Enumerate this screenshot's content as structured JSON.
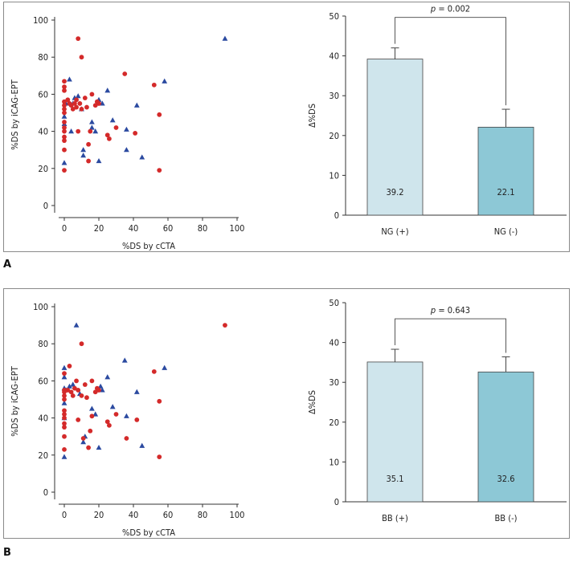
{
  "panels": [
    {
      "label": "A",
      "scatter": {
        "type": "scatter",
        "xlabel": "%DS by cCTA",
        "ylabel": "%DS by iCAG-EPT",
        "xlim": [
          0,
          100
        ],
        "ylim": [
          0,
          100
        ],
        "xticks": [
          0,
          20,
          40,
          60,
          80,
          100
        ],
        "yticks": [
          0,
          20,
          40,
          60,
          80,
          100
        ],
        "series": [
          {
            "name": "blue triangles",
            "color": "#2b4aa0",
            "marker": "triangle",
            "points": [
              [
                0,
                23
              ],
              [
                0,
                44
              ],
              [
                0,
                48
              ],
              [
                1,
                55
              ],
              [
                3,
                68
              ],
              [
                4,
                40
              ],
              [
                5,
                55
              ],
              [
                6,
                58
              ],
              [
                8,
                59
              ],
              [
                10,
                52
              ],
              [
                11,
                27
              ],
              [
                11,
                30
              ],
              [
                16,
                45
              ],
              [
                16,
                42
              ],
              [
                18,
                40
              ],
              [
                20,
                24
              ],
              [
                20,
                57
              ],
              [
                22,
                55
              ],
              [
                25,
                62
              ],
              [
                28,
                46
              ],
              [
                36,
                30
              ],
              [
                36,
                41
              ],
              [
                42,
                54
              ],
              [
                45,
                26
              ],
              [
                58,
                67
              ],
              [
                93,
                90
              ]
            ]
          },
          {
            "name": "red circles",
            "color": "#d42a2a",
            "marker": "circle",
            "points": [
              [
                0,
                19
              ],
              [
                0,
                30
              ],
              [
                0,
                35
              ],
              [
                0,
                37
              ],
              [
                0,
                40
              ],
              [
                0,
                42
              ],
              [
                0,
                45
              ],
              [
                0,
                50
              ],
              [
                0,
                52
              ],
              [
                0,
                54
              ],
              [
                0,
                56
              ],
              [
                0,
                62
              ],
              [
                0,
                64
              ],
              [
                0,
                67
              ],
              [
                2,
                57
              ],
              [
                3,
                55
              ],
              [
                4,
                54
              ],
              [
                5,
                52
              ],
              [
                6,
                55
              ],
              [
                7,
                57
              ],
              [
                7,
                53
              ],
              [
                8,
                90
              ],
              [
                8,
                40
              ],
              [
                9,
                55
              ],
              [
                10,
                80
              ],
              [
                10,
                52
              ],
              [
                12,
                58
              ],
              [
                13,
                53
              ],
              [
                14,
                24
              ],
              [
                14,
                33
              ],
              [
                15,
                40
              ],
              [
                16,
                60
              ],
              [
                18,
                54
              ],
              [
                19,
                56
              ],
              [
                20,
                55
              ],
              [
                25,
                38
              ],
              [
                26,
                36
              ],
              [
                30,
                42
              ],
              [
                35,
                71
              ],
              [
                41,
                39
              ],
              [
                52,
                65
              ],
              [
                55,
                19
              ],
              [
                55,
                49
              ]
            ]
          }
        ]
      },
      "bar": {
        "type": "bar",
        "ylabel": "Δ%DS",
        "ylim": [
          0,
          50
        ],
        "yticks": [
          0,
          10,
          20,
          30,
          40,
          50
        ],
        "categories": [
          "NG (+)",
          "NG (-)"
        ],
        "values": [
          39.2,
          22.1
        ],
        "value_labels": [
          "39.2",
          "22.1"
        ],
        "errors": [
          2.8,
          4.5
        ],
        "colors": [
          "#cfe5ec",
          "#8dc8d6"
        ],
        "annotation": "p = 0.002",
        "annotation_p": "p",
        "annotation_rest": " = 0.002"
      }
    },
    {
      "label": "B",
      "scatter": {
        "type": "scatter",
        "xlabel": "%DS by cCTA",
        "ylabel": "%DS by iCAG-EPT",
        "xlim": [
          0,
          100
        ],
        "ylim": [
          0,
          100
        ],
        "xticks": [
          0,
          20,
          40,
          60,
          80,
          100
        ],
        "yticks": [
          0,
          20,
          40,
          60,
          80,
          100
        ],
        "series": [
          {
            "name": "blue triangles",
            "color": "#2b4aa0",
            "marker": "triangle",
            "points": [
              [
                0,
                19
              ],
              [
                0,
                40
              ],
              [
                0,
                48
              ],
              [
                0,
                56
              ],
              [
                0,
                62
              ],
              [
                0,
                67
              ],
              [
                1,
                55
              ],
              [
                3,
                57
              ],
              [
                5,
                58
              ],
              [
                7,
                90
              ],
              [
                9,
                53
              ],
              [
                11,
                27
              ],
              [
                12,
                30
              ],
              [
                16,
                45
              ],
              [
                18,
                42
              ],
              [
                20,
                24
              ],
              [
                21,
                57
              ],
              [
                22,
                55
              ],
              [
                25,
                62
              ],
              [
                28,
                46
              ],
              [
                35,
                71
              ],
              [
                36,
                41
              ],
              [
                42,
                54
              ],
              [
                45,
                25
              ],
              [
                58,
                67
              ]
            ]
          },
          {
            "name": "red circles",
            "color": "#d42a2a",
            "marker": "circle",
            "points": [
              [
                0,
                23
              ],
              [
                0,
                30
              ],
              [
                0,
                35
              ],
              [
                0,
                37
              ],
              [
                0,
                40
              ],
              [
                0,
                42
              ],
              [
                0,
                44
              ],
              [
                0,
                50
              ],
              [
                0,
                52
              ],
              [
                0,
                54
              ],
              [
                0,
                55
              ],
              [
                0,
                64
              ],
              [
                2,
                55
              ],
              [
                3,
                68
              ],
              [
                4,
                54
              ],
              [
                5,
                52
              ],
              [
                6,
                56
              ],
              [
                7,
                60
              ],
              [
                8,
                55
              ],
              [
                8,
                39
              ],
              [
                10,
                80
              ],
              [
                10,
                52
              ],
              [
                11,
                29
              ],
              [
                12,
                58
              ],
              [
                13,
                51
              ],
              [
                14,
                24
              ],
              [
                15,
                33
              ],
              [
                16,
                41
              ],
              [
                16,
                60
              ],
              [
                18,
                54
              ],
              [
                19,
                56
              ],
              [
                20,
                55
              ],
              [
                25,
                38
              ],
              [
                26,
                36
              ],
              [
                30,
                42
              ],
              [
                36,
                29
              ],
              [
                42,
                39
              ],
              [
                52,
                65
              ],
              [
                55,
                19
              ],
              [
                55,
                49
              ],
              [
                93,
                90
              ]
            ]
          }
        ]
      },
      "bar": {
        "type": "bar",
        "ylabel": "Δ%DS",
        "ylim": [
          0,
          50
        ],
        "yticks": [
          0,
          10,
          20,
          30,
          40,
          50
        ],
        "categories": [
          "BB (+)",
          "BB (-)"
        ],
        "values": [
          35.1,
          32.6
        ],
        "value_labels": [
          "35.1",
          "32.6"
        ],
        "errors": [
          3.2,
          3.8
        ],
        "colors": [
          "#cfe5ec",
          "#8dc8d6"
        ],
        "annotation": "p = 0.643",
        "annotation_p": "p",
        "annotation_rest": " = 0.643"
      }
    }
  ]
}
